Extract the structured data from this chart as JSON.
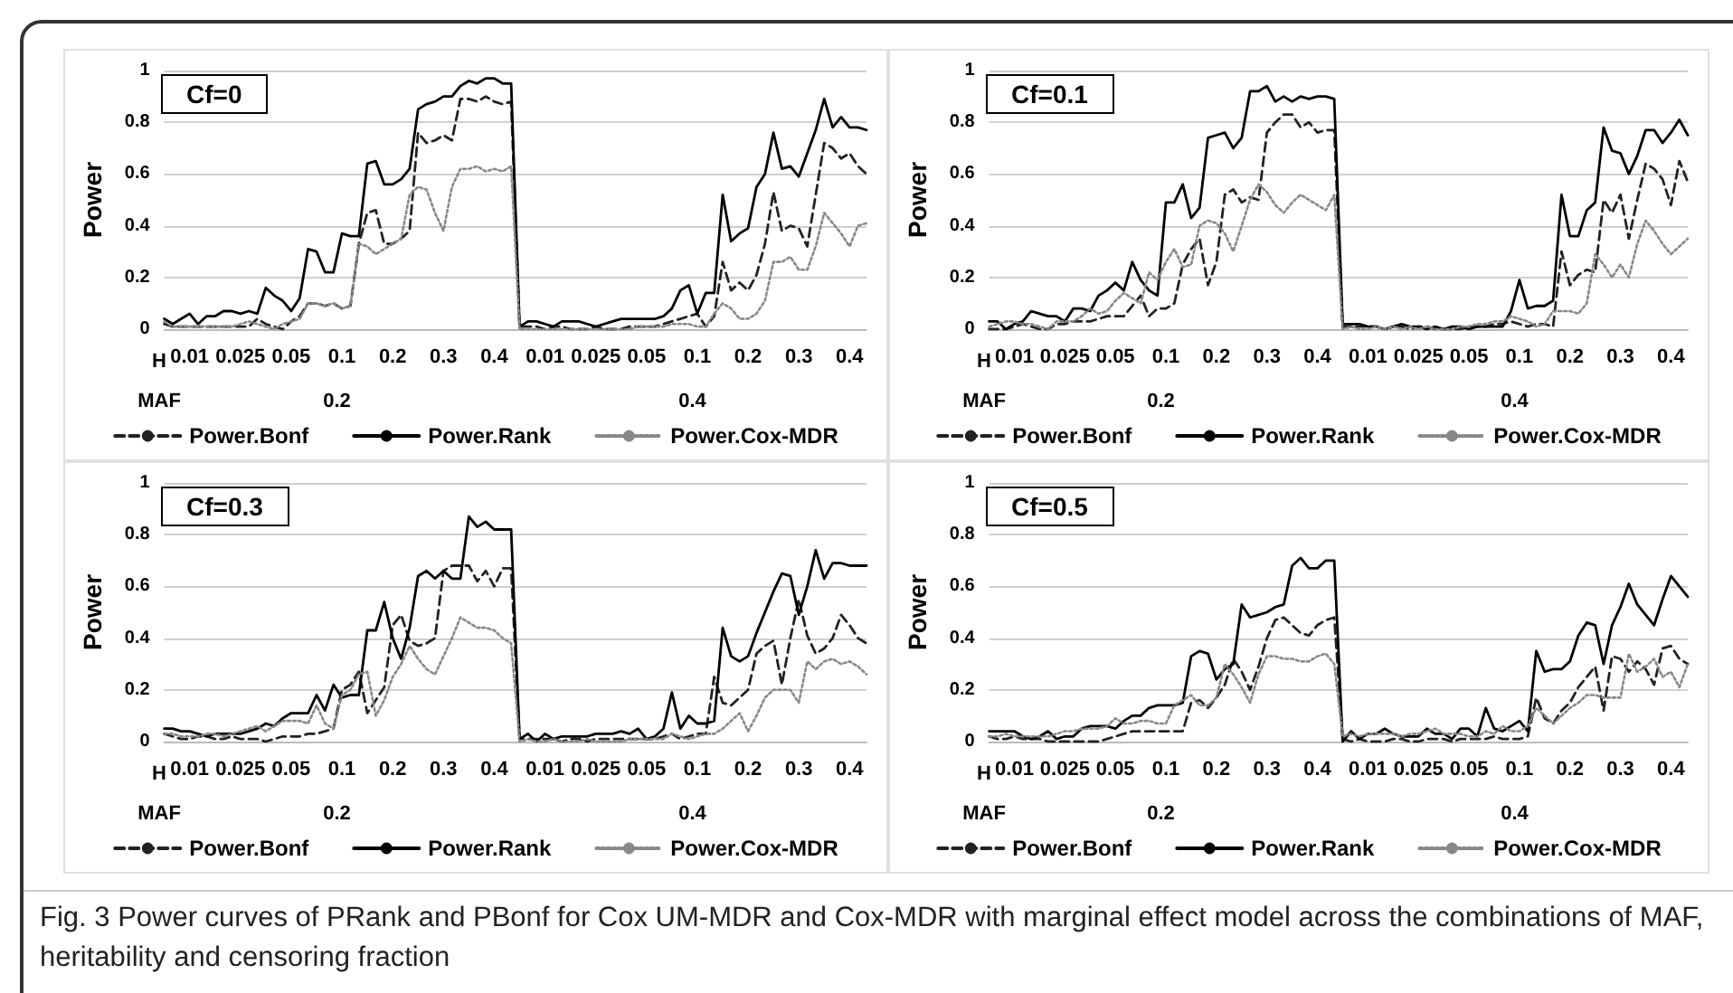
{
  "chart_data": [
    {
      "type": "line",
      "title": "Cf=0",
      "ylabel": "Power",
      "ylim": [
        0,
        1
      ],
      "yticks": [
        0,
        0.2,
        0.4,
        0.6,
        0.8,
        1
      ],
      "grid": "y",
      "legend": "bottom",
      "marker": "none",
      "categories": [
        null,
        null,
        null,
        "0.01",
        null,
        null,
        null,
        null,
        null,
        "0.025",
        null,
        null,
        null,
        null,
        null,
        "0.05",
        null,
        null,
        null,
        null,
        null,
        "0.1",
        null,
        null,
        null,
        null,
        null,
        "0.2",
        null,
        null,
        null,
        null,
        null,
        "0.3",
        null,
        null,
        null,
        null,
        null,
        "0.4",
        null,
        null,
        null,
        null,
        null,
        "0.01",
        null,
        null,
        null,
        null,
        null,
        "0.025",
        null,
        null,
        null,
        null,
        null,
        "0.05",
        null,
        null,
        null,
        null,
        null,
        "0.1",
        null,
        null,
        null,
        null,
        null,
        "0.2",
        null,
        null,
        null,
        null,
        null,
        "0.3",
        null,
        null,
        null,
        null,
        null,
        "0.4",
        null,
        null
      ],
      "annotations": [
        "H",
        "MAF",
        "0.2",
        "0.4"
      ],
      "series": [
        {
          "name": "Power.Bonf",
          "color": "#222222",
          "line_style": "dashed",
          "values": [
            0.02,
            0.01,
            0.01,
            0.01,
            0.01,
            0.01,
            0.01,
            0.01,
            0.01,
            0.01,
            0.01,
            0.04,
            0.02,
            0.01,
            0.0,
            0.03,
            0.05,
            0.1,
            0.1,
            0.09,
            0.1,
            0.08,
            0.09,
            0.33,
            0.45,
            0.46,
            0.33,
            0.33,
            0.35,
            0.38,
            0.76,
            0.72,
            0.73,
            0.75,
            0.73,
            0.89,
            0.89,
            0.88,
            0.9,
            0.88,
            0.87,
            0.88,
            0.01,
            0.01,
            0.01,
            0.0,
            0.01,
            0.01,
            0.0,
            0.0,
            0.0,
            0.01,
            0.0,
            0.0,
            0.0,
            0.01,
            0.01,
            0.01,
            0.01,
            0.02,
            0.03,
            0.04,
            0.05,
            0.06,
            0.01,
            0.05,
            0.26,
            0.15,
            0.18,
            0.15,
            0.21,
            0.33,
            0.53,
            0.38,
            0.4,
            0.39,
            0.32,
            0.52,
            0.72,
            0.7,
            0.66,
            0.68,
            0.63,
            0.6
          ]
        },
        {
          "name": "Power.Rank",
          "color": "#000000",
          "line_style": "solid",
          "values": [
            0.04,
            0.02,
            0.04,
            0.06,
            0.02,
            0.05,
            0.05,
            0.07,
            0.07,
            0.06,
            0.07,
            0.06,
            0.16,
            0.13,
            0.11,
            0.07,
            0.12,
            0.31,
            0.3,
            0.22,
            0.22,
            0.37,
            0.36,
            0.36,
            0.64,
            0.65,
            0.56,
            0.56,
            0.58,
            0.62,
            0.85,
            0.87,
            0.88,
            0.9,
            0.9,
            0.94,
            0.96,
            0.95,
            0.97,
            0.97,
            0.95,
            0.95,
            0.01,
            0.03,
            0.03,
            0.02,
            0.01,
            0.03,
            0.03,
            0.03,
            0.02,
            0.01,
            0.02,
            0.03,
            0.04,
            0.04,
            0.04,
            0.04,
            0.04,
            0.05,
            0.08,
            0.15,
            0.17,
            0.06,
            0.14,
            0.14,
            0.52,
            0.34,
            0.37,
            0.39,
            0.55,
            0.6,
            0.76,
            0.62,
            0.63,
            0.59,
            0.68,
            0.77,
            0.89,
            0.78,
            0.82,
            0.78,
            0.78,
            0.77
          ]
        },
        {
          "name": "Power.Cox-MDR",
          "color": "#888888",
          "line_style": "dotted",
          "values": [
            0.03,
            0.01,
            0.01,
            0.01,
            0.01,
            0.01,
            0.01,
            0.01,
            0.01,
            0.02,
            0.03,
            0.02,
            0.01,
            0.0,
            0.02,
            0.03,
            0.04,
            0.1,
            0.1,
            0.09,
            0.1,
            0.08,
            0.09,
            0.33,
            0.32,
            0.29,
            0.31,
            0.33,
            0.35,
            0.52,
            0.55,
            0.54,
            0.45,
            0.38,
            0.55,
            0.62,
            0.62,
            0.63,
            0.61,
            0.62,
            0.61,
            0.63,
            0.0,
            0.0,
            0.0,
            0.0,
            0.0,
            0.0,
            0.0,
            0.0,
            0.0,
            0.0,
            0.0,
            0.0,
            0.0,
            0.0,
            0.01,
            0.01,
            0.01,
            0.01,
            0.02,
            0.02,
            0.02,
            0.01,
            0.01,
            0.06,
            0.1,
            0.08,
            0.04,
            0.04,
            0.06,
            0.11,
            0.26,
            0.26,
            0.28,
            0.23,
            0.23,
            0.32,
            0.45,
            0.41,
            0.37,
            0.32,
            0.4,
            0.41
          ]
        }
      ]
    },
    {
      "type": "line",
      "title": "Cf=0.1",
      "ylabel": "Power",
      "ylim": [
        0,
        1
      ],
      "yticks": [
        0,
        0.2,
        0.4,
        0.6,
        0.8,
        1
      ],
      "grid": "y",
      "legend": "bottom",
      "marker": "none",
      "categories": [
        null,
        null,
        null,
        "0.01",
        null,
        null,
        null,
        null,
        null,
        "0.025",
        null,
        null,
        null,
        null,
        null,
        "0.05",
        null,
        null,
        null,
        null,
        null,
        "0.1",
        null,
        null,
        null,
        null,
        null,
        "0.2",
        null,
        null,
        null,
        null,
        null,
        "0.3",
        null,
        null,
        null,
        null,
        null,
        "0.4",
        null,
        null,
        null,
        null,
        null,
        "0.01",
        null,
        null,
        null,
        null,
        null,
        "0.025",
        null,
        null,
        null,
        null,
        null,
        "0.05",
        null,
        null,
        null,
        null,
        null,
        "0.1",
        null,
        null,
        null,
        null,
        null,
        "0.2",
        null,
        null,
        null,
        null,
        null,
        "0.3",
        null,
        null,
        null,
        null,
        null,
        "0.4",
        null,
        null
      ],
      "annotations": [
        "H",
        "MAF",
        "0.2",
        "0.4"
      ],
      "series": [
        {
          "name": "Power.Bonf",
          "color": "#222222",
          "line_style": "dashed",
          "values": [
            0.0,
            0.0,
            0.0,
            0.01,
            0.02,
            0.01,
            0.0,
            0.0,
            0.02,
            0.02,
            0.03,
            0.03,
            0.03,
            0.04,
            0.05,
            0.05,
            0.05,
            0.09,
            0.13,
            0.05,
            0.08,
            0.08,
            0.1,
            0.25,
            0.31,
            0.35,
            0.17,
            0.26,
            0.52,
            0.54,
            0.49,
            0.51,
            0.5,
            0.76,
            0.8,
            0.83,
            0.83,
            0.78,
            0.8,
            0.76,
            0.77,
            0.77,
            0.01,
            0.01,
            0.01,
            0.01,
            0.01,
            0.0,
            0.01,
            0.01,
            0.0,
            0.01,
            0.01,
            0.0,
            0.0,
            0.0,
            0.0,
            0.01,
            0.01,
            0.01,
            0.02,
            0.02,
            0.03,
            0.02,
            0.01,
            0.02,
            0.02,
            0.01,
            0.3,
            0.17,
            0.21,
            0.23,
            0.22,
            0.5,
            0.45,
            0.52,
            0.35,
            0.5,
            0.64,
            0.62,
            0.58,
            0.48,
            0.65,
            0.57
          ]
        },
        {
          "name": "Power.Rank",
          "color": "#000000",
          "line_style": "solid",
          "values": [
            0.03,
            0.03,
            0.0,
            0.02,
            0.03,
            0.07,
            0.06,
            0.05,
            0.05,
            0.03,
            0.08,
            0.08,
            0.07,
            0.13,
            0.15,
            0.18,
            0.15,
            0.26,
            0.19,
            0.15,
            0.13,
            0.49,
            0.49,
            0.56,
            0.43,
            0.47,
            0.74,
            0.75,
            0.76,
            0.7,
            0.74,
            0.92,
            0.92,
            0.94,
            0.88,
            0.9,
            0.88,
            0.9,
            0.89,
            0.9,
            0.9,
            0.89,
            0.02,
            0.02,
            0.02,
            0.01,
            0.01,
            0.0,
            0.01,
            0.02,
            0.01,
            0.01,
            0.0,
            0.01,
            0.0,
            0.01,
            0.01,
            0.0,
            0.01,
            0.01,
            0.01,
            0.01,
            0.07,
            0.19,
            0.08,
            0.09,
            0.09,
            0.11,
            0.52,
            0.36,
            0.36,
            0.46,
            0.49,
            0.78,
            0.69,
            0.68,
            0.6,
            0.67,
            0.77,
            0.77,
            0.72,
            0.76,
            0.81,
            0.75
          ]
        },
        {
          "name": "Power.Cox-MDR",
          "color": "#888888",
          "line_style": "dotted",
          "values": [
            0.01,
            0.02,
            0.03,
            0.03,
            0.02,
            0.02,
            0.01,
            0.0,
            0.03,
            0.03,
            0.03,
            0.05,
            0.08,
            0.06,
            0.07,
            0.11,
            0.14,
            0.12,
            0.1,
            0.22,
            0.19,
            0.26,
            0.31,
            0.24,
            0.25,
            0.4,
            0.42,
            0.41,
            0.37,
            0.3,
            0.4,
            0.5,
            0.56,
            0.53,
            0.48,
            0.45,
            0.49,
            0.52,
            0.5,
            0.48,
            0.46,
            0.52,
            0.0,
            0.01,
            0.0,
            0.0,
            0.01,
            0.0,
            0.01,
            0.0,
            0.01,
            0.0,
            0.01,
            0.0,
            0.0,
            0.0,
            0.01,
            0.01,
            0.02,
            0.02,
            0.03,
            0.03,
            0.05,
            0.04,
            0.03,
            0.01,
            0.02,
            0.07,
            0.07,
            0.07,
            0.06,
            0.1,
            0.29,
            0.25,
            0.2,
            0.25,
            0.2,
            0.33,
            0.42,
            0.38,
            0.33,
            0.29,
            0.32,
            0.35
          ]
        }
      ]
    },
    {
      "type": "line",
      "title": "Cf=0.3",
      "ylabel": "Power",
      "ylim": [
        0,
        1
      ],
      "yticks": [
        0,
        0.2,
        0.4,
        0.6,
        0.8,
        1
      ],
      "grid": "y",
      "legend": "bottom",
      "marker": "none",
      "categories": [
        null,
        null,
        null,
        "0.01",
        null,
        null,
        null,
        null,
        null,
        "0.025",
        null,
        null,
        null,
        null,
        null,
        "0.05",
        null,
        null,
        null,
        null,
        null,
        "0.1",
        null,
        null,
        null,
        null,
        null,
        "0.2",
        null,
        null,
        null,
        null,
        null,
        "0.3",
        null,
        null,
        null,
        null,
        null,
        "0.4",
        null,
        null,
        null,
        null,
        null,
        "0.01",
        null,
        null,
        null,
        null,
        null,
        "0.025",
        null,
        null,
        null,
        null,
        null,
        "0.05",
        null,
        null,
        null,
        null,
        null,
        "0.1",
        null,
        null,
        null,
        null,
        null,
        "0.2",
        null,
        null,
        null,
        null,
        null,
        "0.3",
        null,
        null,
        null,
        null,
        null,
        "0.4",
        null,
        null
      ],
      "annotations": [
        "H",
        "MAF",
        "0.2",
        "0.4"
      ],
      "series": [
        {
          "name": "Power.Bonf",
          "color": "#222222",
          "line_style": "dashed",
          "values": [
            0.03,
            0.02,
            0.01,
            0.01,
            0.02,
            0.02,
            0.01,
            0.01,
            0.02,
            0.01,
            0.01,
            0.01,
            0.0,
            0.01,
            0.02,
            0.02,
            0.02,
            0.03,
            0.03,
            0.04,
            0.05,
            0.2,
            0.22,
            0.27,
            0.11,
            0.16,
            0.21,
            0.45,
            0.49,
            0.39,
            0.37,
            0.38,
            0.4,
            0.66,
            0.68,
            0.68,
            0.68,
            0.62,
            0.66,
            0.6,
            0.67,
            0.67,
            0.01,
            0.01,
            0.01,
            0.01,
            0.01,
            0.0,
            0.01,
            0.01,
            0.0,
            0.01,
            0.01,
            0.01,
            0.01,
            0.01,
            0.01,
            0.01,
            0.01,
            0.02,
            0.03,
            0.01,
            0.02,
            0.03,
            0.03,
            0.25,
            0.15,
            0.14,
            0.17,
            0.2,
            0.34,
            0.37,
            0.39,
            0.22,
            0.4,
            0.55,
            0.41,
            0.34,
            0.36,
            0.4,
            0.49,
            0.45,
            0.4,
            0.38
          ]
        },
        {
          "name": "Power.Rank",
          "color": "#000000",
          "line_style": "solid",
          "values": [
            0.05,
            0.05,
            0.04,
            0.04,
            0.03,
            0.02,
            0.03,
            0.03,
            0.03,
            0.03,
            0.04,
            0.05,
            0.07,
            0.06,
            0.09,
            0.11,
            0.11,
            0.11,
            0.18,
            0.12,
            0.22,
            0.17,
            0.18,
            0.18,
            0.43,
            0.43,
            0.54,
            0.4,
            0.32,
            0.44,
            0.64,
            0.66,
            0.63,
            0.66,
            0.63,
            0.63,
            0.87,
            0.83,
            0.85,
            0.82,
            0.82,
            0.82,
            0.01,
            0.03,
            0.0,
            0.03,
            0.01,
            0.02,
            0.02,
            0.02,
            0.02,
            0.03,
            0.03,
            0.03,
            0.04,
            0.03,
            0.05,
            0.01,
            0.02,
            0.05,
            0.19,
            0.05,
            0.1,
            0.07,
            0.07,
            0.08,
            0.44,
            0.33,
            0.31,
            0.33,
            0.42,
            0.5,
            0.58,
            0.65,
            0.64,
            0.49,
            0.6,
            0.74,
            0.63,
            0.69,
            0.69,
            0.68,
            0.68,
            0.68
          ]
        },
        {
          "name": "Power.Cox-MDR",
          "color": "#888888",
          "line_style": "dotted",
          "values": [
            0.03,
            0.03,
            0.02,
            0.02,
            0.02,
            0.03,
            0.03,
            0.02,
            0.03,
            0.04,
            0.05,
            0.06,
            0.04,
            0.06,
            0.08,
            0.08,
            0.08,
            0.07,
            0.14,
            0.07,
            0.05,
            0.18,
            0.2,
            0.26,
            0.27,
            0.1,
            0.16,
            0.25,
            0.3,
            0.37,
            0.32,
            0.28,
            0.26,
            0.33,
            0.4,
            0.48,
            0.46,
            0.44,
            0.44,
            0.43,
            0.4,
            0.38,
            0.0,
            0.01,
            0.0,
            0.0,
            0.01,
            0.0,
            0.0,
            0.0,
            0.01,
            0.0,
            0.0,
            0.0,
            0.0,
            0.01,
            0.01,
            0.01,
            0.01,
            0.01,
            0.03,
            0.02,
            0.01,
            0.02,
            0.03,
            0.03,
            0.05,
            0.08,
            0.11,
            0.04,
            0.1,
            0.17,
            0.2,
            0.2,
            0.2,
            0.15,
            0.31,
            0.28,
            0.31,
            0.32,
            0.3,
            0.31,
            0.29,
            0.26
          ]
        }
      ]
    },
    {
      "type": "line",
      "title": "Cf=0.5",
      "ylabel": "Power",
      "ylim": [
        0,
        1
      ],
      "yticks": [
        0,
        0.2,
        0.4,
        0.6,
        0.8,
        1
      ],
      "grid": "y",
      "legend": "bottom",
      "marker": "none",
      "categories": [
        null,
        null,
        null,
        "0.01",
        null,
        null,
        null,
        null,
        null,
        "0.025",
        null,
        null,
        null,
        null,
        null,
        "0.05",
        null,
        null,
        null,
        null,
        null,
        "0.1",
        null,
        null,
        null,
        null,
        null,
        "0.2",
        null,
        null,
        null,
        null,
        null,
        "0.3",
        null,
        null,
        null,
        null,
        null,
        "0.4",
        null,
        null,
        null,
        null,
        null,
        "0.01",
        null,
        null,
        null,
        null,
        null,
        "0.025",
        null,
        null,
        null,
        null,
        null,
        "0.05",
        null,
        null,
        null,
        null,
        null,
        "0.1",
        null,
        null,
        null,
        null,
        null,
        "0.2",
        null,
        null,
        null,
        null,
        null,
        "0.3",
        null,
        null,
        null,
        null,
        null,
        "0.4",
        null,
        null
      ],
      "annotations": [
        "H",
        "MAF",
        "0.2",
        "0.4",
        "Fig. 3 Power curves of PRank and PBonf for Cox UM-MDR and Cox-MDR with marginal effect model across the combinations of MAF, heritability and censoring fraction"
      ],
      "series": [
        {
          "name": "Power.Bonf",
          "color": "#222222",
          "line_style": "dashed",
          "values": [
            0.02,
            0.01,
            0.01,
            0.02,
            0.01,
            0.01,
            0.01,
            0.0,
            0.0,
            0.0,
            0.0,
            0.0,
            0.0,
            0.0,
            0.01,
            0.02,
            0.03,
            0.04,
            0.04,
            0.04,
            0.04,
            0.04,
            0.04,
            0.04,
            0.15,
            0.16,
            0.13,
            0.17,
            0.22,
            0.32,
            0.27,
            0.2,
            0.29,
            0.4,
            0.47,
            0.48,
            0.45,
            0.42,
            0.41,
            0.45,
            0.47,
            0.48,
            0.01,
            0.0,
            0.01,
            0.0,
            0.0,
            0.0,
            0.01,
            0.01,
            0.0,
            0.0,
            0.01,
            0.01,
            0.01,
            0.0,
            0.01,
            0.01,
            0.01,
            0.01,
            0.02,
            0.01,
            0.01,
            0.01,
            0.02,
            0.17,
            0.09,
            0.07,
            0.12,
            0.15,
            0.21,
            0.25,
            0.29,
            0.12,
            0.33,
            0.32,
            0.27,
            0.31,
            0.28,
            0.22,
            0.36,
            0.37,
            0.32,
            0.3
          ]
        },
        {
          "name": "Power.Rank",
          "color": "#000000",
          "line_style": "solid",
          "values": [
            0.04,
            0.04,
            0.04,
            0.04,
            0.02,
            0.01,
            0.02,
            0.04,
            0.01,
            0.02,
            0.02,
            0.05,
            0.06,
            0.06,
            0.06,
            0.05,
            0.08,
            0.1,
            0.1,
            0.13,
            0.14,
            0.14,
            0.14,
            0.15,
            0.33,
            0.35,
            0.34,
            0.24,
            0.28,
            0.3,
            0.53,
            0.48,
            0.49,
            0.5,
            0.52,
            0.53,
            0.68,
            0.71,
            0.67,
            0.67,
            0.7,
            0.7,
            0.0,
            0.04,
            0.01,
            0.03,
            0.03,
            0.05,
            0.03,
            0.02,
            0.02,
            0.02,
            0.05,
            0.03,
            0.03,
            0.01,
            0.05,
            0.05,
            0.02,
            0.13,
            0.05,
            0.04,
            0.06,
            0.08,
            0.04,
            0.35,
            0.27,
            0.28,
            0.28,
            0.31,
            0.41,
            0.46,
            0.45,
            0.3,
            0.45,
            0.52,
            0.61,
            0.53,
            0.49,
            0.45,
            0.55,
            0.64,
            0.6,
            0.56
          ]
        },
        {
          "name": "Power.Cox-MDR",
          "color": "#888888",
          "line_style": "dotted",
          "values": [
            0.02,
            0.02,
            0.03,
            0.02,
            0.02,
            0.02,
            0.02,
            0.02,
            0.03,
            0.04,
            0.04,
            0.05,
            0.05,
            0.05,
            0.06,
            0.09,
            0.07,
            0.07,
            0.08,
            0.08,
            0.07,
            0.07,
            0.14,
            0.16,
            0.18,
            0.14,
            0.14,
            0.17,
            0.3,
            0.26,
            0.21,
            0.15,
            0.26,
            0.33,
            0.33,
            0.32,
            0.32,
            0.31,
            0.31,
            0.33,
            0.34,
            0.3,
            0.02,
            0.03,
            0.02,
            0.03,
            0.03,
            0.03,
            0.03,
            0.02,
            0.03,
            0.03,
            0.04,
            0.05,
            0.03,
            0.03,
            0.03,
            0.02,
            0.02,
            0.04,
            0.03,
            0.06,
            0.04,
            0.04,
            0.06,
            0.13,
            0.1,
            0.07,
            0.1,
            0.13,
            0.15,
            0.18,
            0.18,
            0.17,
            0.17,
            0.17,
            0.34,
            0.27,
            0.29,
            0.32,
            0.25,
            0.27,
            0.21,
            0.3
          ]
        }
      ]
    }
  ]
}
